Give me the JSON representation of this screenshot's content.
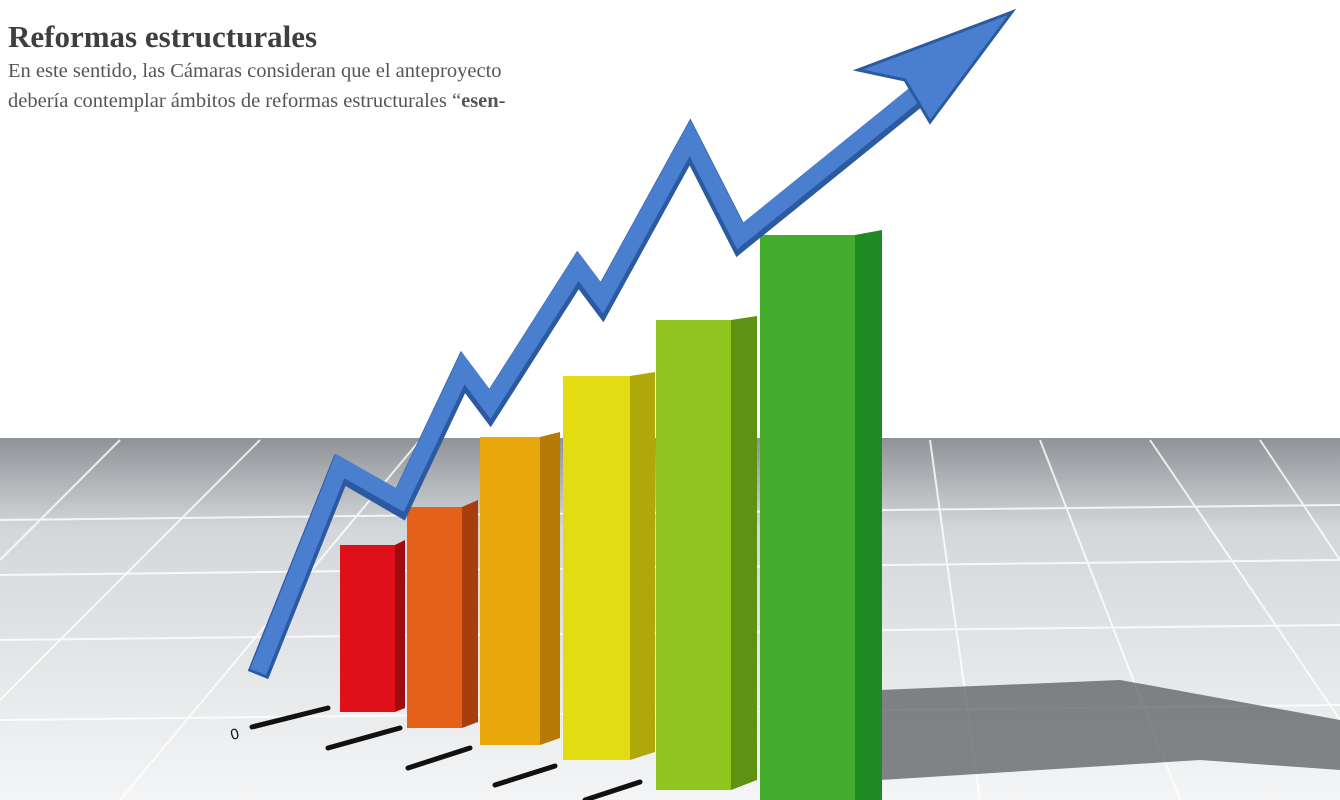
{
  "header": {
    "title": "Reformas estructurales"
  },
  "paragraph": {
    "lines": [
      "En este sentido, las Cámaras consideran que el anteproyecto",
      "debería contemplar ámbitos de reformas estructurales “"
    ],
    "emphasis": "esen-"
  },
  "illustration": {
    "axis_label": "0"
  }
}
